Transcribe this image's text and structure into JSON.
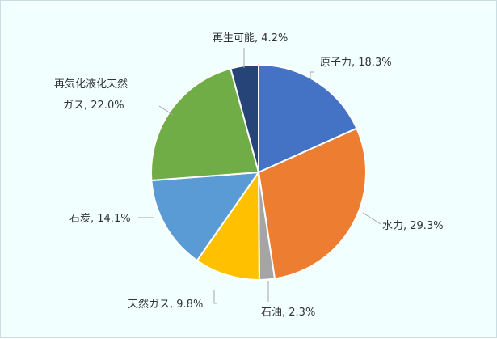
{
  "chart_data": {
    "type": "pie",
    "start_angle_deg": 0,
    "direction": "clockwise",
    "slice_border_color": "#ffffff",
    "background_color": "#f2ffff",
    "slices": [
      {
        "label": "原子力",
        "value": 18.3,
        "display": "原子力, 18.3%",
        "color": "#4472c4"
      },
      {
        "label": "水力",
        "value": 29.3,
        "display": "水力, 29.3%",
        "color": "#ed7d31"
      },
      {
        "label": "石油",
        "value": 2.3,
        "display": "石油, 2.3%",
        "color": "#a5a5a5"
      },
      {
        "label": "天然ガス",
        "value": 9.8,
        "display": "天然ガス, 9.8%",
        "color": "#ffc000"
      },
      {
        "label": "石炭",
        "value": 14.1,
        "display": "石炭, 14.1%",
        "color": "#5b9bd5"
      },
      {
        "label": "再気化液化天然ガス",
        "value": 22.0,
        "display_lines": [
          "再気化液化天然",
          "ガス, 22.0%"
        ],
        "color": "#70ad47"
      },
      {
        "label": "再生可能",
        "value": 4.2,
        "display": "再生可能, 4.2%",
        "color": "#264478"
      }
    ]
  }
}
